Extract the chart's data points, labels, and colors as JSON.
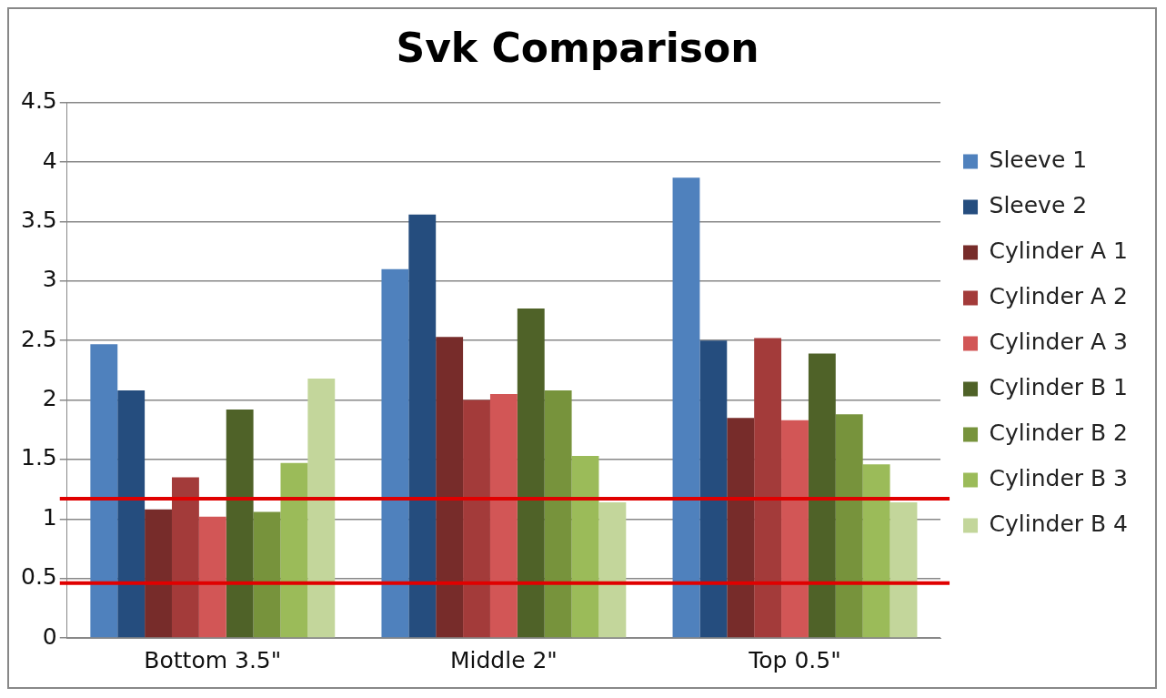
{
  "chart_data": {
    "type": "bar",
    "title": "Svk Comparison",
    "categories": [
      "Bottom 3.5\"",
      "Middle 2\"",
      "Top 0.5\""
    ],
    "series": [
      {
        "name": "Sleeve 1",
        "color": "#4f81bd",
        "values": [
          2.47,
          3.1,
          3.87
        ]
      },
      {
        "name": "Sleeve 2",
        "color": "#254d7e",
        "values": [
          2.08,
          3.56,
          2.5
        ]
      },
      {
        "name": "Cylinder A 1",
        "color": "#772c2a",
        "values": [
          1.08,
          2.53,
          1.85
        ]
      },
      {
        "name": "Cylinder A 2",
        "color": "#a33b3a",
        "values": [
          1.35,
          2.0,
          2.52
        ]
      },
      {
        "name": "Cylinder A 3",
        "color": "#d25656",
        "values": [
          1.02,
          2.05,
          1.83
        ]
      },
      {
        "name": "Cylinder B 1",
        "color": "#4f6228",
        "values": [
          1.92,
          2.77,
          2.39
        ]
      },
      {
        "name": "Cylinder B 2",
        "color": "#77933c",
        "values": [
          1.06,
          2.08,
          1.88
        ]
      },
      {
        "name": "Cylinder B 3",
        "color": "#9bbb59",
        "values": [
          1.47,
          1.53,
          1.46
        ]
      },
      {
        "name": "Cylinder B 4",
        "color": "#c3d69b",
        "values": [
          2.18,
          1.14,
          1.14
        ]
      }
    ],
    "ylim": [
      0,
      4.5
    ],
    "yticks": [
      0,
      0.5,
      1,
      1.5,
      2,
      2.5,
      3,
      3.5,
      4,
      4.5
    ],
    "grid": "y",
    "legend": "right",
    "ref_lines": [
      {
        "axis": "y",
        "value": 1.17,
        "color": "#e00000"
      },
      {
        "axis": "y",
        "value": 0.46,
        "color": "#e00000"
      }
    ]
  }
}
